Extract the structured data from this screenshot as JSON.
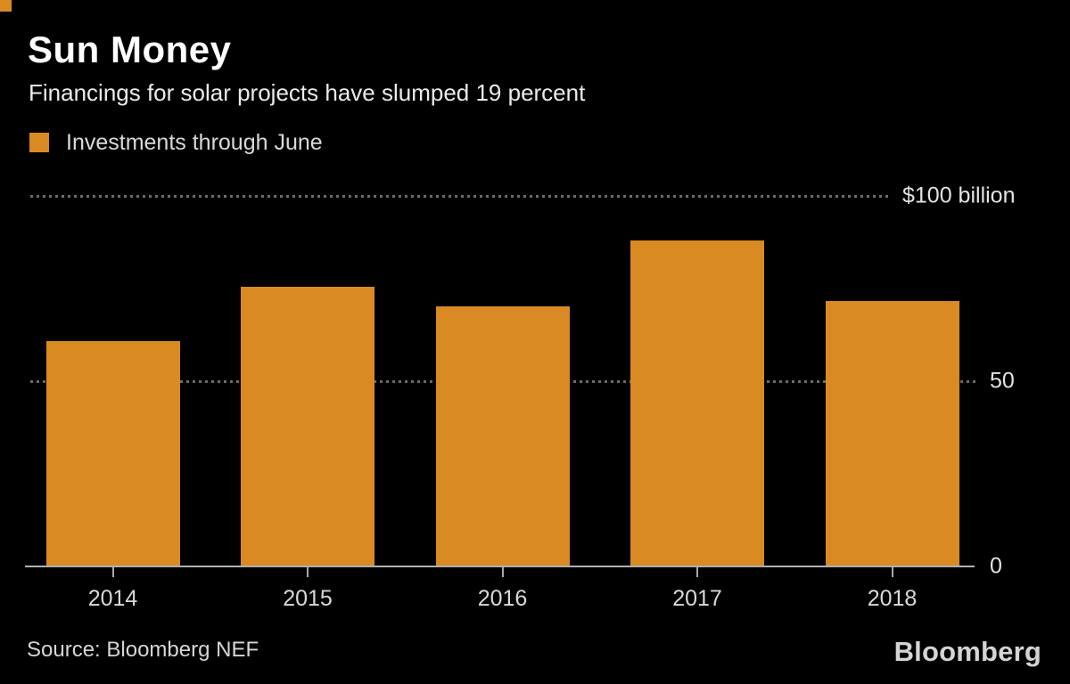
{
  "header": {
    "title": "Sun Money",
    "subtitle": "Financings for solar projects have slumped 19 percent"
  },
  "legend": {
    "label": "Investments through June",
    "swatch_color": "#d98a23"
  },
  "chart_data": {
    "type": "bar",
    "title": "Sun Money",
    "subtitle": "Financings for solar projects have slumped 19 percent",
    "series_name": "Investments through June",
    "categories": [
      "2014",
      "2015",
      "2016",
      "2017",
      "2018"
    ],
    "values": [
      60.8,
      75.5,
      70.2,
      88.0,
      71.6
    ],
    "unit": "billion USD",
    "xlabel": "",
    "ylabel": "",
    "ylim": [
      0,
      100
    ],
    "grid": "dotted horizontal at 50 and 100",
    "legend_position": "top-left",
    "bar_color": "#d98a23",
    "background_color": "#000000",
    "y_axis_labels": [
      {
        "value": 100,
        "text": "$100 billion"
      },
      {
        "value": 50,
        "text": "50"
      },
      {
        "value": 0,
        "text": "0"
      }
    ]
  },
  "footer": {
    "source": "Source: Bloomberg NEF",
    "logo": "Bloomberg"
  }
}
